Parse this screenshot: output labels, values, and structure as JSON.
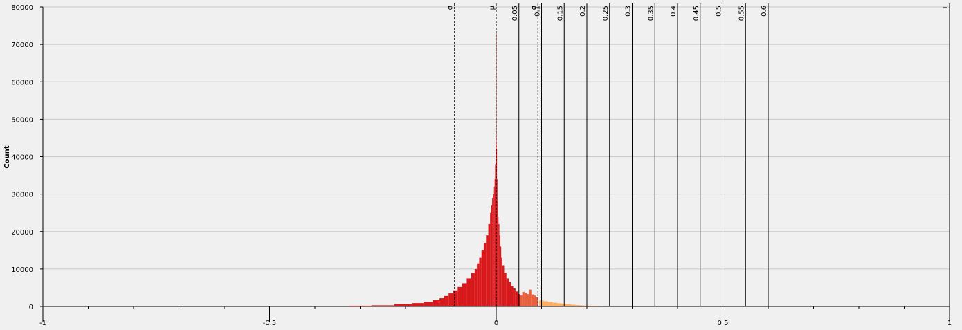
{
  "chart_data": {
    "type": "bar",
    "title": "",
    "xlabel": "",
    "ylabel": "Count",
    "xlim": [
      -1,
      1
    ],
    "ylim": [
      0,
      80000
    ],
    "x_ticks": [
      {
        "value": -1,
        "label": "-1"
      },
      {
        "value": -0.5,
        "label": "-0.5"
      },
      {
        "value": 0,
        "label": "0"
      },
      {
        "value": 0.5,
        "label": "0.5"
      },
      {
        "value": 1,
        "label": "1"
      }
    ],
    "x_minor_tick_step": 0.1,
    "y_ticks": [
      0,
      10000,
      20000,
      30000,
      40000,
      50000,
      60000,
      70000,
      80000
    ],
    "grid": "horizontal",
    "series": [
      {
        "color": "#d7191c",
        "x": [
          -0.3,
          -0.25,
          -0.2,
          -0.17,
          -0.15,
          -0.13,
          -0.12,
          -0.11,
          -0.1,
          -0.09,
          -0.08,
          -0.07,
          -0.06,
          -0.05,
          -0.045,
          -0.04,
          -0.035,
          -0.03,
          -0.025,
          -0.02,
          -0.015,
          -0.012,
          -0.01,
          -0.008,
          -0.006,
          -0.004,
          -0.003,
          -0.002,
          -0.001,
          0,
          0.001,
          0.002,
          0.003,
          0.004,
          0.006,
          0.008,
          0.01,
          0.012,
          0.015,
          0.02,
          0.025,
          0.03,
          0.035,
          0.04,
          0.045,
          0.05
        ],
        "values": [
          200,
          300,
          600,
          900,
          1200,
          1700,
          2200,
          2800,
          3500,
          4300,
          5200,
          6200,
          7500,
          9000,
          10000,
          11500,
          13000,
          15000,
          17000,
          19000,
          22000,
          25000,
          27000,
          29000,
          30000,
          32000,
          34000,
          38000,
          45000,
          73000,
          42000,
          34000,
          28000,
          24000,
          22000,
          19000,
          16000,
          13000,
          11000,
          9000,
          7500,
          6500,
          5500,
          4800,
          4000,
          3300
        ]
      },
      {
        "color": "#e8613c",
        "x": [
          0.055,
          0.06,
          0.065,
          0.07,
          0.075,
          0.08,
          0.085,
          0.09
        ],
        "values": [
          3000,
          3900,
          3600,
          3300,
          4500,
          3200,
          2900,
          2400
        ]
      },
      {
        "color": "#fdae61",
        "x": [
          0.1,
          0.11,
          0.12,
          0.13,
          0.14,
          0.15,
          0.16,
          0.17,
          0.18,
          0.19,
          0.2,
          0.22,
          0.24
        ],
        "values": [
          1600,
          1400,
          1200,
          1000,
          850,
          700,
          550,
          450,
          350,
          280,
          220,
          150,
          100
        ]
      },
      {
        "color": "#7aa24a",
        "x": [
          0.26,
          0.28,
          0.3,
          0.32,
          0.34
        ],
        "values": [
          100,
          80,
          70,
          60,
          50
        ]
      }
    ],
    "markers": [
      {
        "x": -0.092,
        "label": "σ",
        "style": "dashed"
      },
      {
        "x": 0,
        "label": "μ",
        "style": "dashed"
      },
      {
        "x": 0.092,
        "label": "σ",
        "style": "dashed"
      },
      {
        "x": 0.05,
        "label": "0.05",
        "style": "solid"
      },
      {
        "x": 0.1,
        "label": "0.1",
        "style": "solid"
      },
      {
        "x": 0.15,
        "label": "0.15",
        "style": "solid"
      },
      {
        "x": 0.2,
        "label": "0.2",
        "style": "solid"
      },
      {
        "x": 0.25,
        "label": "0.25",
        "style": "solid"
      },
      {
        "x": 0.3,
        "label": "0.3",
        "style": "solid"
      },
      {
        "x": 0.35,
        "label": "0.35",
        "style": "solid"
      },
      {
        "x": 0.4,
        "label": "0.4",
        "style": "solid"
      },
      {
        "x": 0.45,
        "label": "0.45",
        "style": "solid"
      },
      {
        "x": 0.5,
        "label": "0.5",
        "style": "solid"
      },
      {
        "x": 0.55,
        "label": "0.55",
        "style": "solid"
      },
      {
        "x": 0.6,
        "label": "0.6",
        "style": "solid"
      },
      {
        "x": 1,
        "label": "1",
        "style": "solid"
      }
    ]
  }
}
